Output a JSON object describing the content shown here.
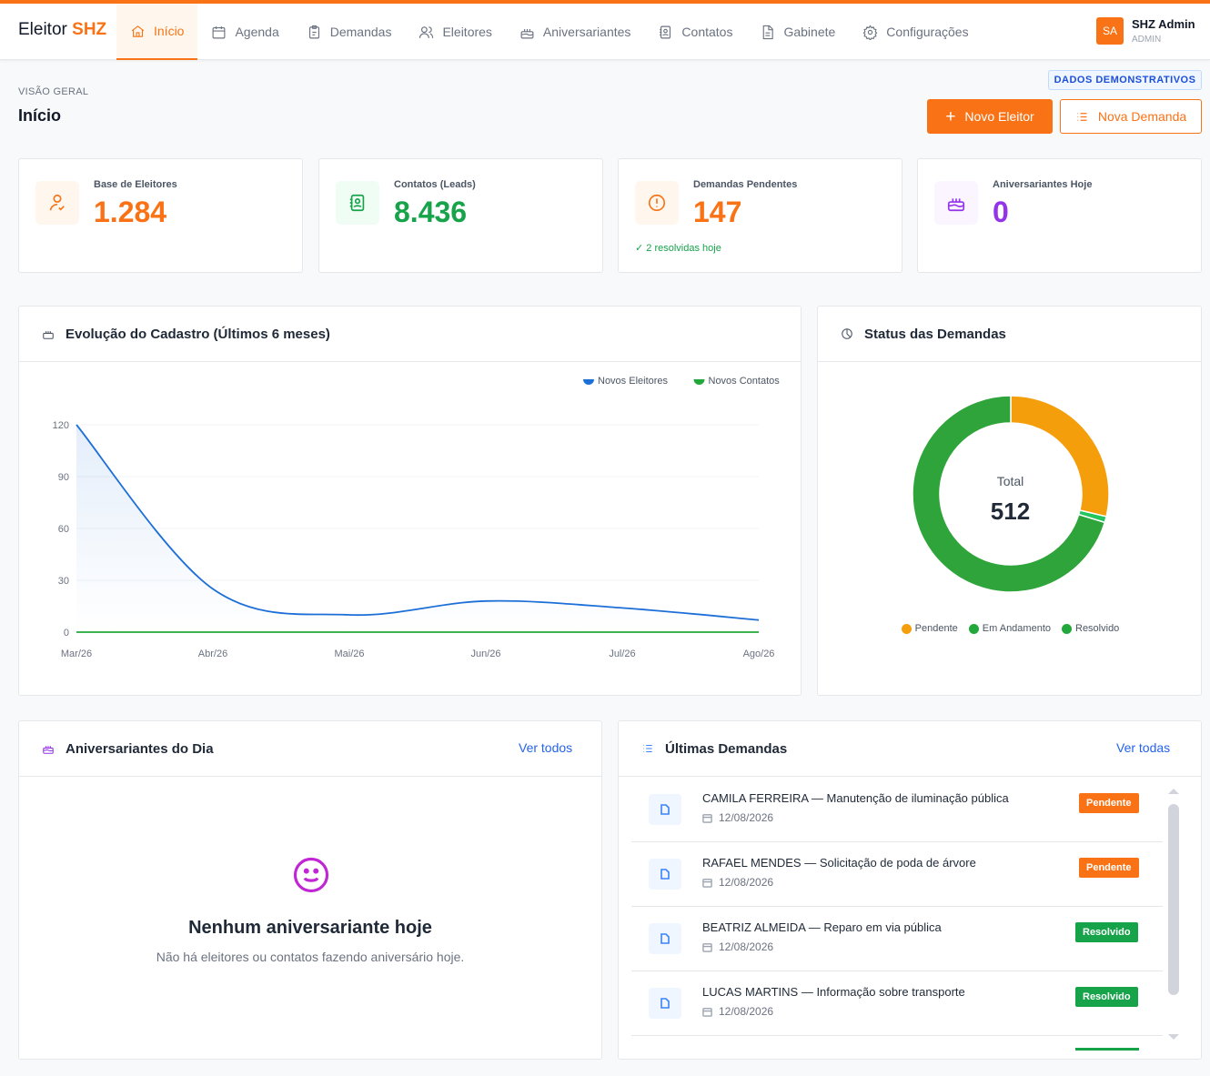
{
  "brand": {
    "name": "Eleitor",
    "accent": "SHZ"
  },
  "nav": [
    {
      "label": "Início",
      "icon": "home-icon",
      "active": true
    },
    {
      "label": "Agenda",
      "icon": "calendar-icon"
    },
    {
      "label": "Demandas",
      "icon": "clipboard-icon"
    },
    {
      "label": "Eleitores",
      "icon": "users-icon"
    },
    {
      "label": "Aniversariantes",
      "icon": "cake-icon"
    },
    {
      "label": "Contatos",
      "icon": "contact-book-icon"
    },
    {
      "label": "Gabinete",
      "icon": "document-icon"
    },
    {
      "label": "Configurações",
      "icon": "gear-icon"
    }
  ],
  "user": {
    "initials": "SA",
    "name": "SHZ Admin",
    "role": "ADMIN"
  },
  "demo_badge": "DADOS DEMONSTRATIVOS",
  "header": {
    "eyebrow": "VISÃO GERAL",
    "title": "Início"
  },
  "actions": {
    "new_voter": "Novo Eleitor",
    "new_demand": "Nova Demanda"
  },
  "stats": [
    {
      "label": "Base de Eleitores",
      "value": "1.284",
      "color": "#f97316",
      "icon": "user-icon"
    },
    {
      "label": "Contatos (Leads)",
      "value": "8.436",
      "color": "#16a34a",
      "icon": "contact-book-icon"
    },
    {
      "label": "Demandas Pendentes",
      "value": "147",
      "color": "#f97316",
      "icon": "alert-icon",
      "note": "2 resolvidas hoje"
    },
    {
      "label": "Aniversariantes Hoje",
      "value": "0",
      "color": "#9333ea",
      "icon": "cake-icon"
    }
  ],
  "evolution": {
    "title": "Evolução do Cadastro (Últimos 6 meses)"
  },
  "status_panel": {
    "title": "Status das Demandas",
    "total_label": "Total",
    "total_value": "512"
  },
  "birthdays": {
    "title": "Aniversariantes do Dia",
    "link": "Ver todos",
    "empty_title": "Nenhum aniversariante hoje",
    "empty_sub": "Não há eleitores ou contatos fazendo aniversário hoje."
  },
  "demands": {
    "title": "Últimas Demandas",
    "link": "Ver todas",
    "items": [
      {
        "title": "CAMILA FERREIRA — Manutenção de iluminação pública",
        "date": "12/08/2026",
        "status": "Pendente",
        "color": "#f97316"
      },
      {
        "title": "RAFAEL MENDES — Solicitação de poda de árvore",
        "date": "12/08/2026",
        "status": "Pendente",
        "color": "#f97316"
      },
      {
        "title": "BEATRIZ ALMEIDA — Reparo em via pública",
        "date": "12/08/2026",
        "status": "Resolvido",
        "color": "#16a34a"
      },
      {
        "title": "LUCAS MARTINS — Informação sobre transporte",
        "date": "12/08/2026",
        "status": "Resolvido",
        "color": "#16a34a"
      }
    ]
  },
  "chart_data": [
    {
      "type": "line",
      "categories": [
        "Mar/26",
        "Abr/26",
        "Mai/26",
        "Jun/26",
        "Jul/26",
        "Ago/26"
      ],
      "series": [
        {
          "name": "Novos Eleitores",
          "color": "#1d6fd8",
          "values": [
            120,
            25,
            10,
            18,
            14,
            7
          ]
        },
        {
          "name": "Novos Contatos",
          "color": "#22a83a",
          "values": [
            0,
            0,
            0,
            0,
            0,
            0
          ]
        }
      ],
      "yticks": [
        0,
        30,
        60,
        90,
        120
      ],
      "ylim": [
        0,
        120
      ],
      "grid": true,
      "legend": "top-right"
    },
    {
      "type": "pie",
      "labels": [
        "Pendente",
        "Em Andamento",
        "Resolvido"
      ],
      "values": [
        147,
        5,
        360
      ],
      "colors": [
        "#f59e0b",
        "#22c55e",
        "#2ea43a"
      ],
      "legend": "bottom"
    }
  ]
}
